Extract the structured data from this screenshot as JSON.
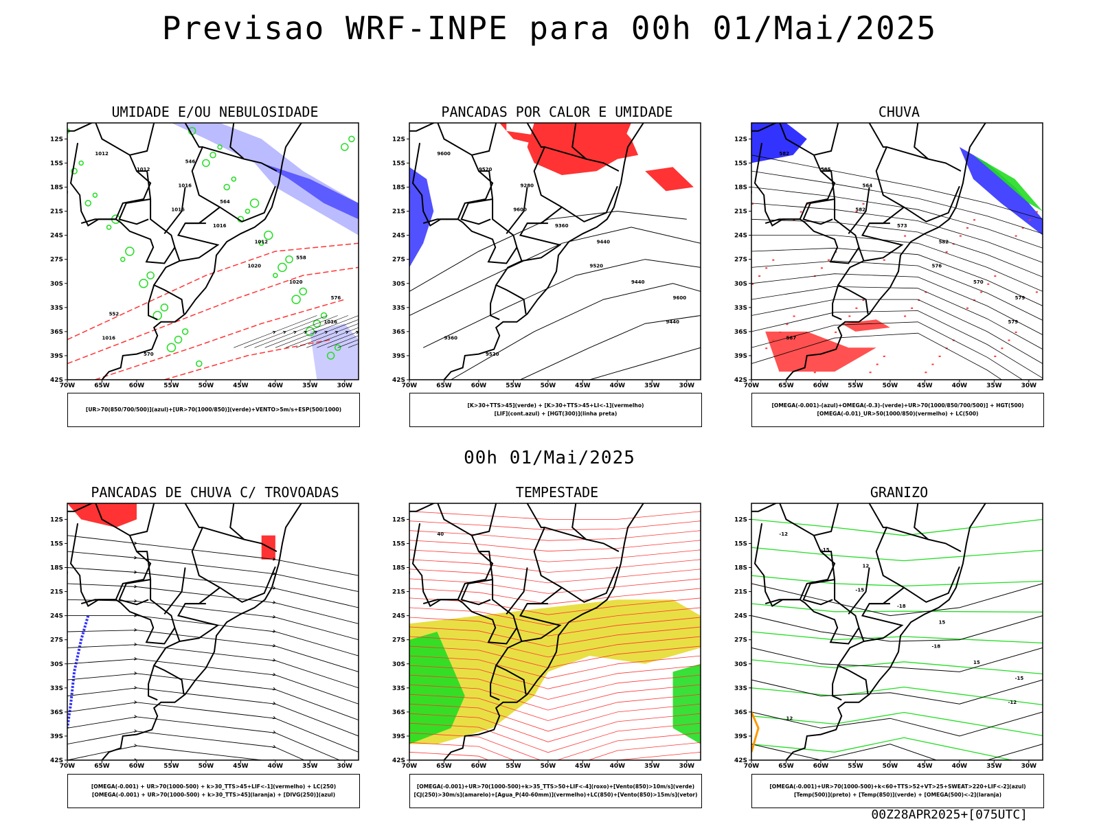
{
  "header": {
    "title": "Previsao WRF-INPE  para 00h 01/Mai/2025",
    "mid_title": "00h 01/Mai/2025",
    "footer": "00Z28APR2025+[075UTC]"
  },
  "axes": {
    "lat_labels": [
      "12S",
      "15S",
      "18S",
      "21S",
      "24S",
      "27S",
      "30S",
      "33S",
      "36S",
      "39S",
      "42S"
    ],
    "lon_labels": [
      "70W",
      "65W",
      "60W",
      "55W",
      "50W",
      "45W",
      "40W",
      "35W",
      "30W"
    ]
  },
  "colors": {
    "blue": "#3333ff",
    "light_blue": "#aaaaff",
    "green": "#22dd22",
    "red": "#ff3333",
    "yellow": "#e6dc30",
    "orange": "#ff9900",
    "dark_teal": "#335555"
  },
  "panels": [
    {
      "title": "UMIDADE E/OU NEBULOSIDADE",
      "legend": [
        "[UR>70(850/700/500)](azul)+[UR>70(1000/850)](verde)+VENTO>5m/s+ESP(500/1000)"
      ],
      "contour_labels": [
        "1012",
        "1016",
        "1020",
        "1016",
        "1012",
        "1016",
        "1020",
        "1016",
        "1016",
        "1012",
        "576",
        "570",
        "564",
        "558",
        "552",
        "546"
      ]
    },
    {
      "title": "PANCADAS POR CALOR E UMIDADE",
      "legend": [
        "[K>30+TTS>45](verde) + [K>30+TTS>45+LI<-1](vermelho)",
        "[LIF](cont.azul) + [HGT(300)](linha preta)"
      ],
      "contour_labels": [
        "9600",
        "9600",
        "9520",
        "9440",
        "9520",
        "9360",
        "9440",
        "9360",
        "9280",
        "9440",
        "9600",
        "9520"
      ]
    },
    {
      "title": "CHUVA",
      "legend": [
        "[OMEGA(-0.001)-(azul)+OMEGA(-0.3)-(verde)+UR>70(1000/850/700/500)] + HGT(500)",
        "[OMEGA(-0.01)_UR>50(1000/850)(vermelho) + LC(500)"
      ],
      "contour_labels": [
        "582",
        "582",
        "576",
        "579",
        "585",
        "573",
        "570",
        "567",
        "564",
        "582",
        "579"
      ]
    },
    {
      "title": "PANCADAS DE CHUVA C/ TROVOADAS",
      "legend": [
        "[OMEGA(-0.001) + UR>70(1000-500) + k>30_TTS>45+LIF<-1](vermelho) + LC(250)",
        "[OMEGA(-0.001) + UR>70(1000-500) + k>30_TTS>45](laranja) + [DIVG(250)](azul)"
      ],
      "contour_labels": []
    },
    {
      "title": "TEMPESTADE",
      "legend": [
        "[OMEGA(-0.001)+UR>70(1000-500)+k>35_TTS>50+LIF<-4](roxo)+[Vento(850)>10m/s](verde)",
        "[CJ(250)>30m/s](amarelo)+[Agua_P(40-60mm)](vermelho)+LC(850)+[Vento(850)>15m/s](vetor)"
      ],
      "contour_labels": [
        "40"
      ]
    },
    {
      "title": "GRANIZO",
      "legend": [
        "[OMEGA(-0.001)+UR>70(1000-500)+k<60+TTS>52+VT>25+SWEAT>220+LIF<-2](azul)",
        "[Temp(500)](preto) + [Temp(850)](verde) + [OMEGA(500)<-2](laranja)"
      ],
      "contour_labels": [
        "-12",
        "-15",
        "-18",
        "-12",
        "-15",
        "-18",
        "15",
        "12",
        "12",
        "15",
        "-15"
      ]
    }
  ]
}
